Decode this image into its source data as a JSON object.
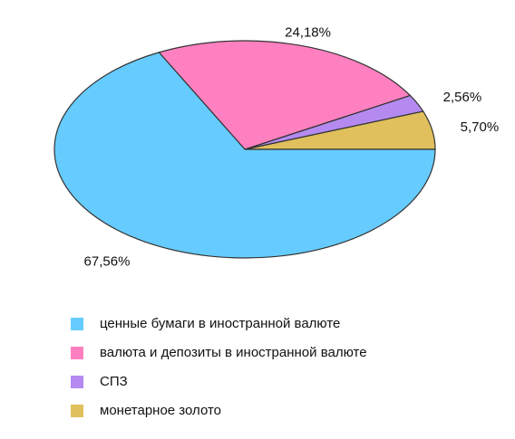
{
  "chart_data": {
    "type": "pie",
    "categories": [
      "ценные бумаги в иностранной валюте",
      "валюта и депозиты в иностранной валюте",
      "СПЗ",
      "монетарное золото"
    ],
    "values": [
      67.56,
      24.18,
      2.56,
      5.7
    ],
    "value_labels": [
      "67,56%",
      "24,18%",
      "2,56%",
      "5,70%"
    ],
    "colors": [
      "#66ccff",
      "#ff80c0",
      "#b48af0",
      "#dfc05c"
    ]
  }
}
